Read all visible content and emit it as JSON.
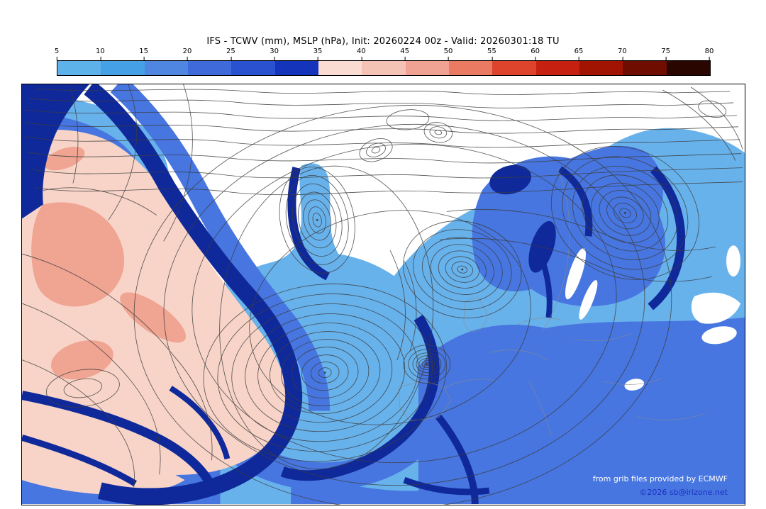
{
  "header": {
    "title": "IFS - TCWV (mm), MSLP (hPa), Init: 20260224 00z - Valid: 20260301:18 TU"
  },
  "colorbar": {
    "ticks": [
      "5",
      "10",
      "15",
      "20",
      "25",
      "30",
      "35",
      "40",
      "45",
      "50",
      "55",
      "60",
      "65",
      "70",
      "75",
      "80"
    ],
    "segments": [
      "#5db2ea",
      "#46a0e6",
      "#4f86e2",
      "#3f6ada",
      "#2a52d0",
      "#1434bb",
      "#fadcd3",
      "#f5c2b6",
      "#f0a392",
      "#ea7a62",
      "#de432b",
      "#c62110",
      "#a21402",
      "#6f0e00",
      "#2a0600"
    ]
  },
  "map": {
    "palette": {
      "dry_white": "#ffffff",
      "light_blue": "#68b2ec",
      "mid_blue": "#4776e0",
      "dark_blue": "#10299a",
      "pink": "#f8d4c8",
      "salmon": "#f0a492",
      "isobar_gray": "#3d3d3d"
    },
    "credits": {
      "line1": "from grib files provided by ECMWF",
      "line2": "©2026 sb@irizone.net"
    }
  }
}
